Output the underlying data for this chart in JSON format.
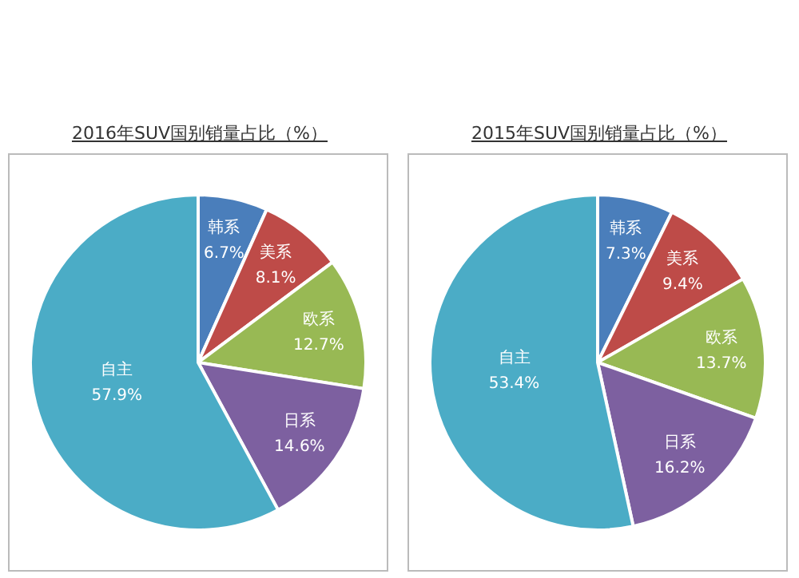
{
  "chart_data": [
    {
      "type": "pie",
      "title": "2016年SUV国别销量占比（%）",
      "categories": [
        "韩系",
        "美系",
        "欧系",
        "日系",
        "自主"
      ],
      "values": [
        6.7,
        8.1,
        12.7,
        14.6,
        57.9
      ],
      "colors": [
        "#4a7ebb",
        "#be4b48",
        "#98b954",
        "#7d60a0",
        "#4bacc6"
      ],
      "value_labels": [
        "6.7%",
        "8.1%",
        "12.7%",
        "14.6%",
        "57.9%"
      ],
      "legend": false
    },
    {
      "type": "pie",
      "title": "2015年SUV国别销量占比（%）",
      "categories": [
        "韩系",
        "美系",
        "欧系",
        "日系",
        "自主"
      ],
      "values": [
        7.3,
        9.4,
        13.7,
        16.2,
        53.4
      ],
      "colors": [
        "#4a7ebb",
        "#be4b48",
        "#98b954",
        "#7d60a0",
        "#4bacc6"
      ],
      "value_labels": [
        "7.3%",
        "9.4%",
        "13.7%",
        "16.2%",
        "53.4%"
      ],
      "legend": false
    }
  ]
}
